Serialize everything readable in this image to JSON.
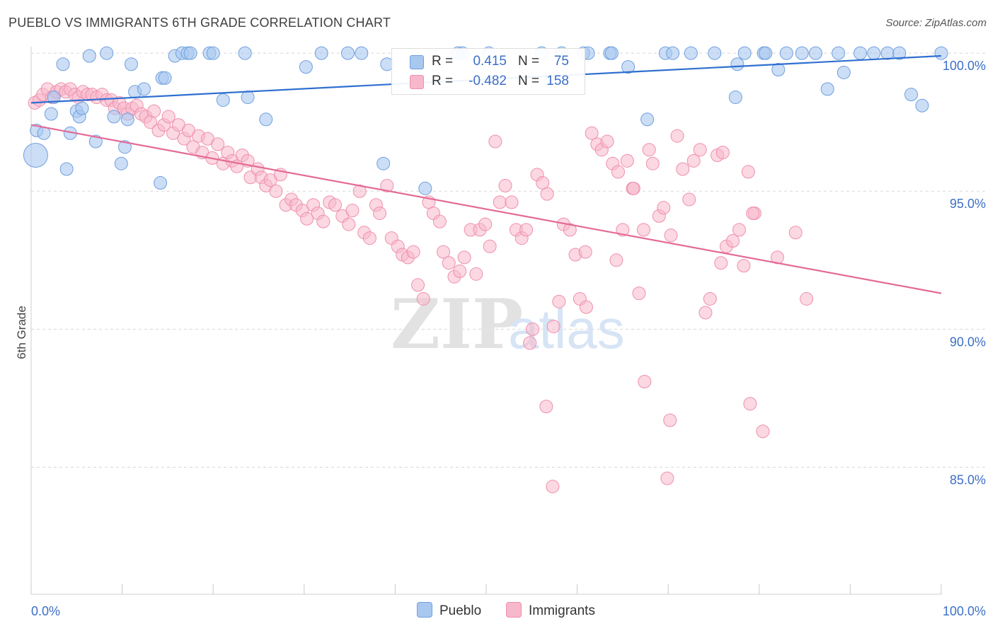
{
  "header": {
    "title": "PUEBLO VS IMMIGRANTS 6TH GRADE CORRELATION CHART",
    "source": "Source: ZipAtlas.com"
  },
  "watermark": {
    "zip": "ZIP",
    "atlas": "atlas"
  },
  "legend": {
    "rows": [
      {
        "r_label": "R =",
        "r_value": "0.415",
        "n_label": "N =",
        "n_value": "75"
      },
      {
        "r_label": "R =",
        "r_value": "-0.482",
        "n_label": "N =",
        "n_value": "158"
      }
    ]
  },
  "bottom_legend": [
    "Pueblo",
    "Immigrants"
  ],
  "colors": {
    "pueblo_fill": "#a9c8f0",
    "pueblo_stroke": "#6f9fde",
    "pueblo_line": "#2f6fd0",
    "immigrants_fill": "#f7b8cb",
    "immigrants_stroke": "#ef8fad",
    "immigrants_line": "#e46a96",
    "axis_label": "#3c6fc7",
    "grid": "#d8d8d8"
  },
  "chart_data": {
    "type": "scatter",
    "title": "PUEBLO VS IMMIGRANTS 6TH GRADE CORRELATION CHART",
    "xlabel": "",
    "ylabel": "6th Grade",
    "xlim": [
      0,
      100
    ],
    "ylim": [
      80.4,
      100.9
    ],
    "x_tick_labels": [
      "0.0%",
      "100.0%"
    ],
    "y_ticks": [
      100,
      95,
      90,
      85
    ],
    "y_tick_labels": [
      "100.0%",
      "95.0%",
      "90.0%",
      "85.0%"
    ],
    "grid": true,
    "legend_position": "top-center",
    "series": [
      {
        "name": "Pueblo",
        "r": 0.415,
        "n": 75,
        "trend": [
          [
            0,
            98.2
          ],
          [
            100,
            99.9
          ]
        ],
        "points": [
          [
            0.5,
            96.3
          ],
          [
            0.6,
            97.2
          ],
          [
            1.4,
            97.1
          ],
          [
            2.2,
            97.8
          ],
          [
            2.5,
            98.4
          ],
          [
            3.5,
            99.6
          ],
          [
            3.9,
            95.8
          ],
          [
            4.3,
            97.1
          ],
          [
            5.0,
            97.9
          ],
          [
            5.3,
            97.7
          ],
          [
            5.6,
            98.0
          ],
          [
            6.4,
            99.9
          ],
          [
            7.1,
            96.8
          ],
          [
            8.3,
            100.0
          ],
          [
            9.1,
            97.7
          ],
          [
            9.9,
            96.0
          ],
          [
            10.3,
            96.6
          ],
          [
            11.0,
            99.6
          ],
          [
            11.4,
            98.6
          ],
          [
            12.4,
            98.7
          ],
          [
            14.2,
            95.3
          ],
          [
            14.4,
            99.1
          ],
          [
            14.7,
            99.1
          ],
          [
            15.8,
            99.9
          ],
          [
            16.6,
            100.0
          ],
          [
            17.2,
            100.0
          ],
          [
            17.5,
            100.0
          ],
          [
            19.6,
            100.0
          ],
          [
            20.0,
            100.0
          ],
          [
            21.1,
            98.3
          ],
          [
            23.5,
            100.0
          ],
          [
            23.8,
            98.4
          ],
          [
            25.8,
            97.6
          ],
          [
            31.9,
            100.0
          ],
          [
            34.8,
            100.0
          ],
          [
            36.3,
            100.0
          ],
          [
            38.7,
            96.0
          ],
          [
            39.1,
            99.6
          ],
          [
            43.3,
            95.1
          ],
          [
            46.9,
            100.0
          ],
          [
            47.4,
            100.0
          ],
          [
            50.3,
            100.0
          ],
          [
            56.1,
            100.0
          ],
          [
            58.3,
            100.0
          ],
          [
            60.7,
            100.0
          ],
          [
            61.2,
            100.0
          ],
          [
            63.6,
            100.0
          ],
          [
            63.8,
            100.0
          ],
          [
            65.6,
            99.5
          ],
          [
            67.7,
            97.6
          ],
          [
            69.7,
            100.0
          ],
          [
            70.5,
            100.0
          ],
          [
            72.5,
            100.0
          ],
          [
            75.1,
            100.0
          ],
          [
            77.6,
            99.6
          ],
          [
            80.5,
            100.0
          ],
          [
            77.4,
            98.4
          ],
          [
            78.4,
            100.0
          ],
          [
            80.7,
            100.0
          ],
          [
            82.1,
            99.4
          ],
          [
            83.0,
            100.0
          ],
          [
            84.7,
            100.0
          ],
          [
            86.2,
            100.0
          ],
          [
            87.5,
            98.7
          ],
          [
            88.7,
            100.0
          ],
          [
            89.3,
            99.3
          ],
          [
            91.1,
            100.0
          ],
          [
            92.6,
            100.0
          ],
          [
            94.1,
            100.0
          ],
          [
            95.4,
            100.0
          ],
          [
            96.7,
            98.5
          ],
          [
            97.9,
            98.1
          ],
          [
            100.0,
            100.0
          ],
          [
            30.2,
            99.5
          ],
          [
            10.6,
            97.6
          ]
        ]
      },
      {
        "name": "Immigrants",
        "r": -0.482,
        "n": 158,
        "trend": [
          [
            0,
            97.4
          ],
          [
            100,
            91.3
          ]
        ],
        "points": [
          [
            0.4,
            98.2
          ],
          [
            0.9,
            98.3
          ],
          [
            1.3,
            98.5
          ],
          [
            1.8,
            98.7
          ],
          [
            2.3,
            98.4
          ],
          [
            2.8,
            98.6
          ],
          [
            3.3,
            98.7
          ],
          [
            3.8,
            98.6
          ],
          [
            4.3,
            98.7
          ],
          [
            4.8,
            98.5
          ],
          [
            5.2,
            98.4
          ],
          [
            5.7,
            98.6
          ],
          [
            6.2,
            98.5
          ],
          [
            6.7,
            98.5
          ],
          [
            7.2,
            98.4
          ],
          [
            7.8,
            98.5
          ],
          [
            8.3,
            98.3
          ],
          [
            8.8,
            98.3
          ],
          [
            9.2,
            98.0
          ],
          [
            9.7,
            98.2
          ],
          [
            10.2,
            98.0
          ],
          [
            10.6,
            97.8
          ],
          [
            11.1,
            98.0
          ],
          [
            11.6,
            98.1
          ],
          [
            12.1,
            97.8
          ],
          [
            12.6,
            97.7
          ],
          [
            13.1,
            97.5
          ],
          [
            13.5,
            97.9
          ],
          [
            14.0,
            97.2
          ],
          [
            14.6,
            97.4
          ],
          [
            15.1,
            97.7
          ],
          [
            15.6,
            97.1
          ],
          [
            16.2,
            97.4
          ],
          [
            16.8,
            96.9
          ],
          [
            17.3,
            97.2
          ],
          [
            17.8,
            96.6
          ],
          [
            18.4,
            97.0
          ],
          [
            18.8,
            96.4
          ],
          [
            19.4,
            96.9
          ],
          [
            19.9,
            96.2
          ],
          [
            20.5,
            96.7
          ],
          [
            21.1,
            96.0
          ],
          [
            21.6,
            96.4
          ],
          [
            22.1,
            96.1
          ],
          [
            22.6,
            95.9
          ],
          [
            23.2,
            96.3
          ],
          [
            23.8,
            96.1
          ],
          [
            24.1,
            95.5
          ],
          [
            24.9,
            95.8
          ],
          [
            25.3,
            95.5
          ],
          [
            25.8,
            95.2
          ],
          [
            26.3,
            95.4
          ],
          [
            26.9,
            95.0
          ],
          [
            27.4,
            95.6
          ],
          [
            28.0,
            94.5
          ],
          [
            28.6,
            94.7
          ],
          [
            29.1,
            94.5
          ],
          [
            29.8,
            94.3
          ],
          [
            30.3,
            94.0
          ],
          [
            31.0,
            94.5
          ],
          [
            31.5,
            94.2
          ],
          [
            32.1,
            93.9
          ],
          [
            32.8,
            94.6
          ],
          [
            33.4,
            94.5
          ],
          [
            34.2,
            94.1
          ],
          [
            34.9,
            93.8
          ],
          [
            35.3,
            94.3
          ],
          [
            36.1,
            95.0
          ],
          [
            36.6,
            93.5
          ],
          [
            37.2,
            93.3
          ],
          [
            37.9,
            94.5
          ],
          [
            38.3,
            94.2
          ],
          [
            39.1,
            95.2
          ],
          [
            39.6,
            93.3
          ],
          [
            40.3,
            93.0
          ],
          [
            40.8,
            92.7
          ],
          [
            41.4,
            92.6
          ],
          [
            42.0,
            92.8
          ],
          [
            42.5,
            91.6
          ],
          [
            43.1,
            91.1
          ],
          [
            43.7,
            94.6
          ],
          [
            44.2,
            94.2
          ],
          [
            44.9,
            93.9
          ],
          [
            45.3,
            92.8
          ],
          [
            45.9,
            92.4
          ],
          [
            46.5,
            91.9
          ],
          [
            47.1,
            92.1
          ],
          [
            47.6,
            92.6
          ],
          [
            48.3,
            93.6
          ],
          [
            48.9,
            92.0
          ],
          [
            49.3,
            93.6
          ],
          [
            49.9,
            93.8
          ],
          [
            50.4,
            93.0
          ],
          [
            51.0,
            96.8
          ],
          [
            51.5,
            94.6
          ],
          [
            52.1,
            95.2
          ],
          [
            52.8,
            94.6
          ],
          [
            53.3,
            93.6
          ],
          [
            53.9,
            93.3
          ],
          [
            54.4,
            93.6
          ],
          [
            55.1,
            90.0
          ],
          [
            55.6,
            95.6
          ],
          [
            56.2,
            95.3
          ],
          [
            56.7,
            94.9
          ],
          [
            57.4,
            90.1
          ],
          [
            58.0,
            91.0
          ],
          [
            58.5,
            93.8
          ],
          [
            59.2,
            93.6
          ],
          [
            59.8,
            92.7
          ],
          [
            60.3,
            91.1
          ],
          [
            61.0,
            90.8
          ],
          [
            61.6,
            97.1
          ],
          [
            62.2,
            96.7
          ],
          [
            62.7,
            96.5
          ],
          [
            63.3,
            96.8
          ],
          [
            63.9,
            96.0
          ],
          [
            64.5,
            95.7
          ],
          [
            65.0,
            93.6
          ],
          [
            65.5,
            96.1
          ],
          [
            66.1,
            95.1
          ],
          [
            66.8,
            91.3
          ],
          [
            67.3,
            93.6
          ],
          [
            67.9,
            96.5
          ],
          [
            68.3,
            96.0
          ],
          [
            69.0,
            94.1
          ],
          [
            69.5,
            94.4
          ],
          [
            70.3,
            93.4
          ],
          [
            71.0,
            97.0
          ],
          [
            71.6,
            95.8
          ],
          [
            72.3,
            94.7
          ],
          [
            72.8,
            96.1
          ],
          [
            73.5,
            96.5
          ],
          [
            74.1,
            90.6
          ],
          [
            74.6,
            91.1
          ],
          [
            75.4,
            96.3
          ],
          [
            76.0,
            96.4
          ],
          [
            76.4,
            93.0
          ],
          [
            77.1,
            93.2
          ],
          [
            77.8,
            93.6
          ],
          [
            78.3,
            92.3
          ],
          [
            79.0,
            87.3
          ],
          [
            79.5,
            94.2
          ],
          [
            80.4,
            86.3
          ],
          [
            85.2,
            91.1
          ],
          [
            70.2,
            86.7
          ],
          [
            67.4,
            88.1
          ],
          [
            69.9,
            84.6
          ],
          [
            54.8,
            89.5
          ],
          [
            56.6,
            87.2
          ],
          [
            57.3,
            84.3
          ],
          [
            75.8,
            92.4
          ],
          [
            78.8,
            95.7
          ],
          [
            60.9,
            92.8
          ],
          [
            64.3,
            92.5
          ],
          [
            66.2,
            95.1
          ],
          [
            79.3,
            94.2
          ],
          [
            82.0,
            92.6
          ],
          [
            84.0,
            93.5
          ]
        ]
      }
    ]
  }
}
